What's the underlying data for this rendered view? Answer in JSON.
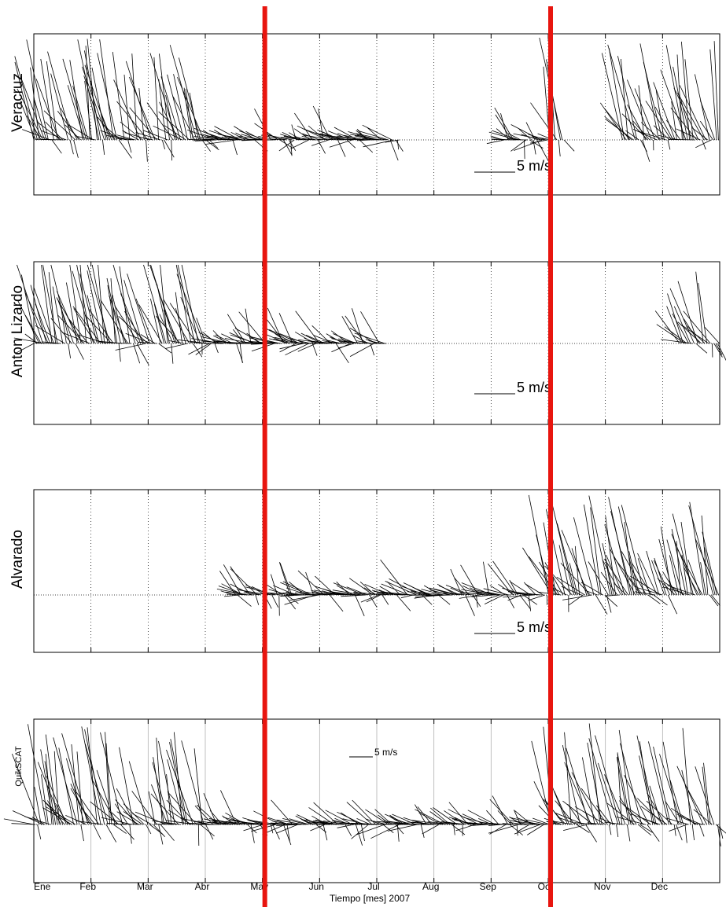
{
  "chart_data": {
    "type": "stick_plot",
    "xlabel": "Tiempo [mes] 2007",
    "months": [
      "Ene",
      "Feb",
      "Mar",
      "Abr",
      "May",
      "Jun",
      "Jul",
      "Aug",
      "Sep",
      "Oct",
      "Nov",
      "Dec"
    ],
    "xlim_month_index": [
      0,
      12
    ],
    "grid": true,
    "highlight_lines": {
      "color": "#e8150f",
      "month_positions": [
        4.0,
        9.0
      ]
    },
    "stick_color": "#000000",
    "panels": [
      {
        "name": "Veracruz",
        "scale_label": "5 m/s",
        "gaps": [
          [
            6.4,
            8.2
          ],
          [
            9.3,
            10.3
          ]
        ],
        "segments": [
          [
            0.0,
            6.4
          ],
          [
            8.2,
            9.3
          ],
          [
            10.3,
            12.0
          ]
        ]
      },
      {
        "name": "Anton Lizardo",
        "scale_label": "5 m/s",
        "gaps": [
          [
            6.2,
            11.3
          ]
        ],
        "segments": [
          [
            0.0,
            6.2
          ],
          [
            11.3,
            12.0
          ]
        ]
      },
      {
        "name": "Alvarado",
        "scale_label": "5 m/s",
        "gaps": [
          [
            0.0,
            3.5
          ]
        ],
        "segments": [
          [
            3.5,
            12.0
          ]
        ]
      },
      {
        "name": "QuikSCAT",
        "scale_label": "5 m/s",
        "gaps": [],
        "segments": [
          [
            0.0,
            12.0
          ]
        ]
      }
    ]
  }
}
